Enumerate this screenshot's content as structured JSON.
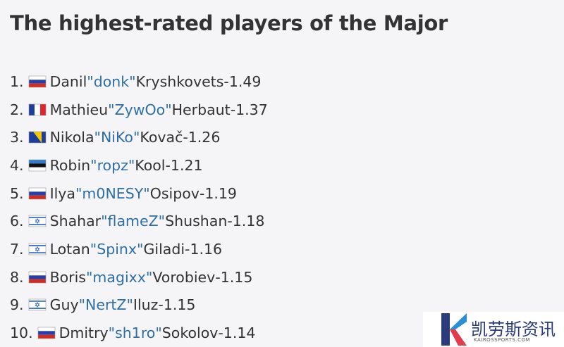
{
  "header": {
    "title": "The highest-rated players of the Major"
  },
  "list": {
    "separator": "-",
    "items": [
      {
        "rank": "1.",
        "flag": "ru",
        "first": "Danil",
        "nick": "\"donk\"",
        "last": "Kryshkovets",
        "rating": "1.49"
      },
      {
        "rank": "2.",
        "flag": "fr",
        "first": "Mathieu",
        "nick": "\"ZywOo\"",
        "last": "Herbaut",
        "rating": "1.37"
      },
      {
        "rank": "3.",
        "flag": "ba",
        "first": "Nikola",
        "nick": "\"NiKo\"",
        "last": "Kovač",
        "rating": "1.26"
      },
      {
        "rank": "4.",
        "flag": "ee",
        "first": "Robin",
        "nick": "\"ropz\"",
        "last": "Kool",
        "rating": "1.21"
      },
      {
        "rank": "5.",
        "flag": "ru",
        "first": "Ilya",
        "nick": "\"m0NESY\"",
        "last": "Osipov",
        "rating": "1.19"
      },
      {
        "rank": "6.",
        "flag": "il",
        "first": "Shahar",
        "nick": "\"flameZ\"",
        "last": "Shushan",
        "rating": "1.18"
      },
      {
        "rank": "7.",
        "flag": "il",
        "first": "Lotan",
        "nick": "\"Spinx\"",
        "last": "Giladi",
        "rating": "1.16"
      },
      {
        "rank": "8.",
        "flag": "ru",
        "first": "Boris",
        "nick": "\"magixx\"",
        "last": "Vorobiev",
        "rating": "1.15"
      },
      {
        "rank": "9.",
        "flag": "il",
        "first": "Guy",
        "nick": "\"NertZ\"",
        "last": "Iluz",
        "rating": "1.15"
      },
      {
        "rank": "10.",
        "flag": "ru",
        "first": "Dmitry",
        "nick": "\"sh1ro\"",
        "last": "Sokolov",
        "rating": "1.14"
      }
    ]
  },
  "watermark": {
    "name": "凯劳斯资讯",
    "site": "KAIROSSPORTS.COM"
  }
}
